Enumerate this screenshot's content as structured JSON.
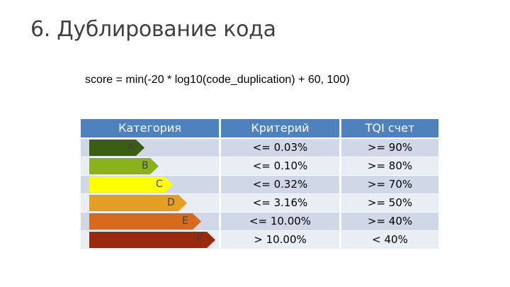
{
  "title": "6. Дублирование кода",
  "formula": "score = min(-20 * log10(code_duplication) + 60, 100)",
  "table": {
    "headers": [
      "Категория",
      "Критерий",
      "TQI счет"
    ],
    "rows": [
      {
        "category": "A",
        "criterion": "<= 0.03%",
        "tqi": ">= 90%",
        "color": "#3b5e13"
      },
      {
        "category": "B",
        "criterion": "<= 0.10%",
        "tqi": ">= 80%",
        "color": "#8bb21a"
      },
      {
        "category": "C",
        "criterion": "<= 0.32%",
        "tqi": ">= 70%",
        "color": "#ffff00"
      },
      {
        "category": "D",
        "criterion": "<= 3.16%",
        "tqi": ">= 50%",
        "color": "#e39f25"
      },
      {
        "category": "E",
        "criterion": "<= 10.00%",
        "tqi": ">= 40%",
        "color": "#d86a1e"
      },
      {
        "category": "F",
        "criterion": "> 10.00%",
        "tqi": "< 40%",
        "color": "#9a2a0c"
      }
    ]
  }
}
